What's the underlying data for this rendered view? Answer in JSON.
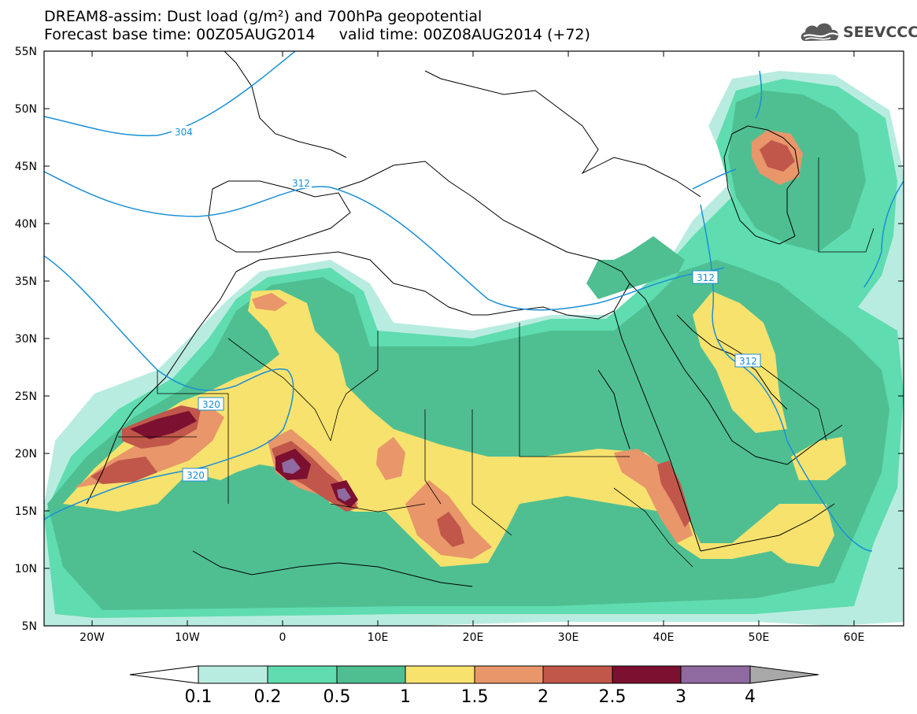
{
  "header": {
    "title_line1": "DREAM8-assim: Dust load (g/m²) and 700hPa geopotential",
    "title_line2": "Forecast base time: 00Z05AUG2014     valid time: 00Z08AUG2014 (+72)"
  },
  "logo": {
    "text": "SEEVCCC",
    "icon": "cloud-logo-icon"
  },
  "map": {
    "lon_ticks": [
      "20W",
      "10W",
      "0",
      "10E",
      "20E",
      "30E",
      "40E",
      "50E",
      "60E"
    ],
    "lat_ticks": [
      "55N",
      "50N",
      "45N",
      "40N",
      "35N",
      "30N",
      "25N",
      "20N",
      "15N",
      "10N",
      "5N"
    ],
    "contour_labels": [
      "304",
      "312",
      "320",
      "320",
      "312",
      "312"
    ],
    "contour_color": "#1a8fd6"
  },
  "colorbar": {
    "labels": [
      "0.1",
      "0.2",
      "0.5",
      "1",
      "1.5",
      "2",
      "2.5",
      "3",
      "4"
    ],
    "colors": [
      "#ffffff",
      "#b9ece0",
      "#5fdcb0",
      "#4fbf92",
      "#f7e26e",
      "#e8966a",
      "#c0574a",
      "#7b1030",
      "#8e6aa0",
      "#a8a8a8"
    ]
  }
}
